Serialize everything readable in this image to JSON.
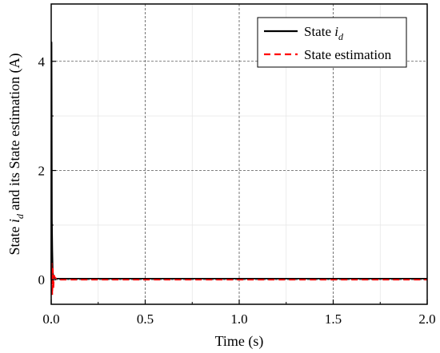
{
  "chart_data": {
    "type": "line",
    "xlabel": "Time (s)",
    "ylabel_parts": {
      "prefix": "State ",
      "variable": "i",
      "subscript": "d",
      "suffix": " and its State estimation (A)"
    },
    "xlim": [
      0.0,
      2.0
    ],
    "ylim": [
      -0.45,
      5.05
    ],
    "x_ticks": [
      0.0,
      0.5,
      1.0,
      1.5,
      2.0
    ],
    "x_tick_labels": [
      "0.0",
      "0.5",
      "1.0",
      "1.5",
      "2.0"
    ],
    "y_ticks": [
      0,
      2,
      4
    ],
    "y_tick_labels": [
      "0",
      "2",
      "4"
    ],
    "grid": true,
    "legend_position": "top-right",
    "series": [
      {
        "name": "State i_d",
        "legend_parts": {
          "prefix": "State ",
          "variable": "i",
          "subscript": "d"
        },
        "color": "#000000",
        "style": "solid",
        "x": [
          0.0,
          0.002,
          0.004,
          0.006,
          0.008,
          0.01,
          0.012,
          0.015,
          0.018,
          0.022,
          0.03,
          0.05,
          0.1,
          0.3,
          0.6,
          1.0,
          1.5,
          2.0
        ],
        "y": [
          0.0,
          4.35,
          1.1,
          0.55,
          0.2,
          0.08,
          0.05,
          0.04,
          0.03,
          0.025,
          0.02,
          0.02,
          0.02,
          0.02,
          0.02,
          0.02,
          0.02,
          0.02
        ]
      },
      {
        "name": "State estimation",
        "color": "#ff0000",
        "style": "dashed",
        "x": [
          0.0,
          0.003,
          0.006,
          0.009,
          0.012,
          0.015,
          0.02,
          0.03,
          0.05,
          0.1,
          0.3,
          0.6,
          1.0,
          1.5,
          2.0
        ],
        "y": [
          0.0,
          0.3,
          -0.28,
          0.2,
          -0.15,
          0.08,
          0.04,
          0.01,
          0.0,
          0.0,
          0.0,
          0.0,
          0.0,
          0.0,
          0.0
        ]
      }
    ]
  }
}
